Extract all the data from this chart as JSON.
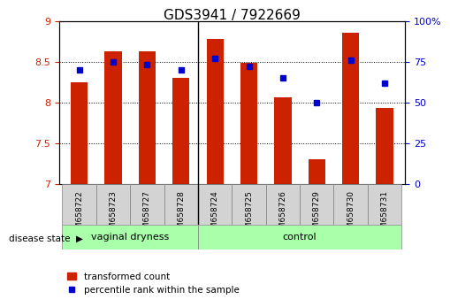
{
  "title": "GDS3941 / 7922669",
  "samples": [
    "GSM658722",
    "GSM658723",
    "GSM658727",
    "GSM658728",
    "GSM658724",
    "GSM658725",
    "GSM658726",
    "GSM658729",
    "GSM658730",
    "GSM658731"
  ],
  "bar_values": [
    8.25,
    8.63,
    8.63,
    8.3,
    8.78,
    8.48,
    8.06,
    7.3,
    8.85,
    7.93
  ],
  "percentile_values": [
    70,
    75,
    73,
    70,
    77,
    72,
    65,
    50,
    76,
    62
  ],
  "bar_color": "#cc2200",
  "marker_color": "#0000cc",
  "ylim_left": [
    7,
    9
  ],
  "ylim_right": [
    0,
    100
  ],
  "yticks_left": [
    7,
    7.5,
    8,
    8.5,
    9
  ],
  "yticks_right": [
    0,
    25,
    50,
    75,
    100
  ],
  "ytick_labels_right": [
    "0",
    "25",
    "50",
    "75",
    "100%"
  ],
  "group1_label": "vaginal dryness",
  "group2_label": "control",
  "group1_count": 4,
  "group2_count": 6,
  "disease_state_label": "disease state",
  "legend_bar_label": "transformed count",
  "legend_marker_label": "percentile rank within the sample",
  "background_color": "#ffffff",
  "plot_bg_color": "#ffffff",
  "grid_color": "#000000",
  "group_bg_color": "#aaffaa",
  "label_bg_color": "#d3d3d3"
}
